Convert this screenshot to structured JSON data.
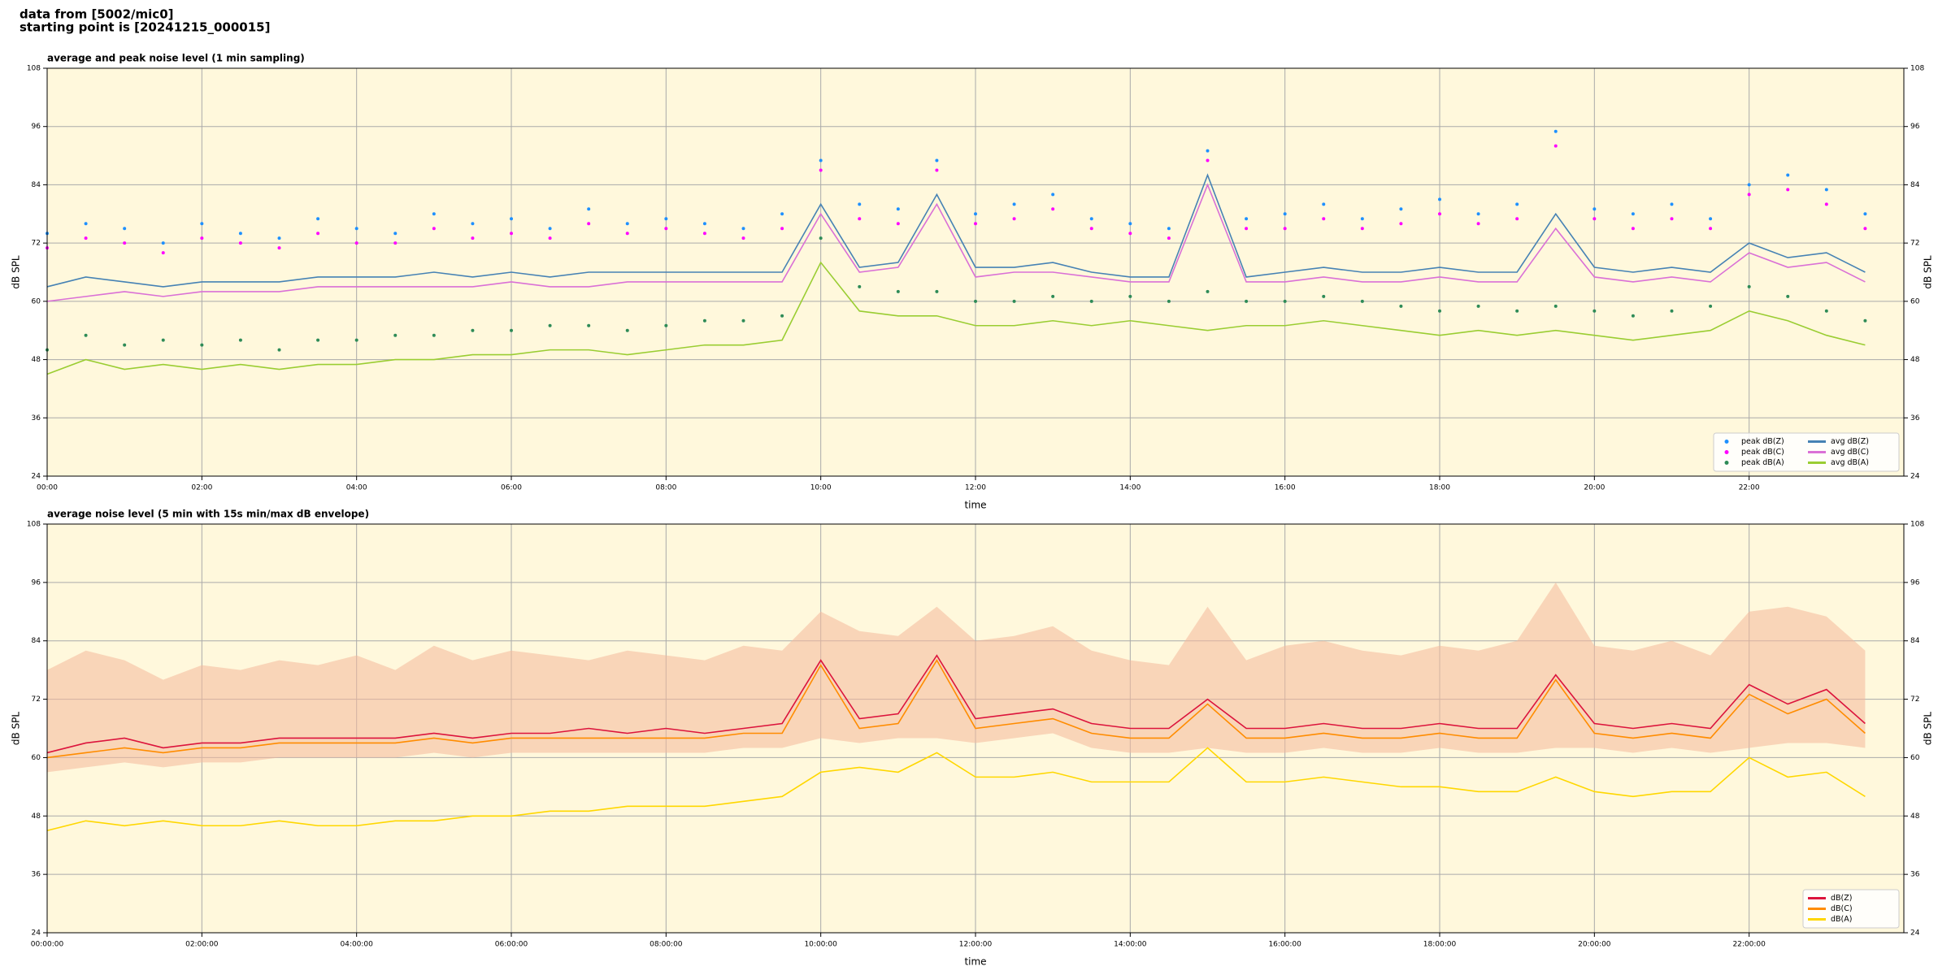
{
  "header": {
    "line1": "data from [5002/mic0]",
    "line2": "starting point is [20241215_000015]"
  },
  "chart_data": [
    {
      "type": "line",
      "title": "average and peak noise level (1 min sampling)",
      "xlabel": "time",
      "ylabel": "dB SPL",
      "xlim": [
        0,
        24
      ],
      "ylim": [
        24,
        108
      ],
      "grid": true,
      "background": "#fff8dc",
      "legend": "lower right",
      "xticks": [
        {
          "value": 0,
          "label": "00:00"
        },
        {
          "value": 2,
          "label": "02:00"
        },
        {
          "value": 4,
          "label": "04:00"
        },
        {
          "value": 6,
          "label": "06:00"
        },
        {
          "value": 8,
          "label": "08:00"
        },
        {
          "value": 10,
          "label": "10:00"
        },
        {
          "value": 12,
          "label": "12:00"
        },
        {
          "value": 14,
          "label": "14:00"
        },
        {
          "value": 16,
          "label": "16:00"
        },
        {
          "value": 18,
          "label": "18:00"
        },
        {
          "value": 20,
          "label": "20:00"
        },
        {
          "value": 22,
          "label": "22:00"
        }
      ],
      "yticks": [
        24,
        36,
        48,
        60,
        72,
        84,
        96,
        108
      ],
      "x": [
        0,
        0.5,
        1,
        1.5,
        2,
        2.5,
        3,
        3.5,
        4,
        4.5,
        5,
        5.5,
        6,
        6.5,
        7,
        7.5,
        8,
        8.5,
        9,
        9.5,
        10,
        10.5,
        11,
        11.5,
        12,
        12.5,
        13,
        13.5,
        14,
        14.5,
        15,
        15.5,
        16,
        16.5,
        17,
        17.5,
        18,
        18.5,
        19,
        19.5,
        20,
        20.5,
        21,
        21.5,
        22,
        22.5,
        23,
        23.5
      ],
      "series": [
        {
          "name": "peak dB(Z)",
          "type": "scatter",
          "color": "#1e90ff",
          "values": [
            74,
            76,
            75,
            72,
            76,
            74,
            73,
            77,
            75,
            74,
            78,
            76,
            77,
            75,
            79,
            76,
            77,
            76,
            75,
            78,
            89,
            80,
            79,
            89,
            78,
            80,
            82,
            77,
            76,
            75,
            91,
            77,
            78,
            80,
            77,
            79,
            81,
            78,
            80,
            95,
            79,
            78,
            80,
            77,
            84,
            86,
            83,
            78
          ]
        },
        {
          "name": "peak dB(C)",
          "type": "scatter",
          "color": "#ff00ff",
          "values": [
            71,
            73,
            72,
            70,
            73,
            72,
            71,
            74,
            72,
            72,
            75,
            73,
            74,
            73,
            76,
            74,
            75,
            74,
            73,
            75,
            87,
            77,
            76,
            87,
            76,
            77,
            79,
            75,
            74,
            73,
            89,
            75,
            75,
            77,
            75,
            76,
            78,
            76,
            77,
            92,
            77,
            75,
            77,
            75,
            82,
            83,
            80,
            75
          ]
        },
        {
          "name": "peak dB(A)",
          "type": "scatter",
          "color": "#2e8b57",
          "values": [
            50,
            53,
            51,
            52,
            51,
            52,
            50,
            52,
            52,
            53,
            53,
            54,
            54,
            55,
            55,
            54,
            55,
            56,
            56,
            57,
            73,
            63,
            62,
            62,
            60,
            60,
            61,
            60,
            61,
            60,
            62,
            60,
            60,
            61,
            60,
            59,
            58,
            59,
            58,
            59,
            58,
            57,
            58,
            59,
            63,
            61,
            58,
            56
          ]
        },
        {
          "name": "avg dB(Z)",
          "type": "line",
          "color": "#4682b4",
          "values": [
            63,
            65,
            64,
            63,
            64,
            64,
            64,
            65,
            65,
            65,
            66,
            65,
            66,
            65,
            66,
            66,
            66,
            66,
            66,
            66,
            80,
            67,
            68,
            82,
            67,
            67,
            68,
            66,
            65,
            65,
            86,
            65,
            66,
            67,
            66,
            66,
            67,
            66,
            66,
            78,
            67,
            66,
            67,
            66,
            72,
            69,
            70,
            66
          ]
        },
        {
          "name": "avg dB(C)",
          "type": "line",
          "color": "#da70d6",
          "values": [
            60,
            61,
            62,
            61,
            62,
            62,
            62,
            63,
            63,
            63,
            63,
            63,
            64,
            63,
            63,
            64,
            64,
            64,
            64,
            64,
            78,
            66,
            67,
            80,
            65,
            66,
            66,
            65,
            64,
            64,
            84,
            64,
            64,
            65,
            64,
            64,
            65,
            64,
            64,
            75,
            65,
            64,
            65,
            64,
            70,
            67,
            68,
            64
          ]
        },
        {
          "name": "avg dB(A)",
          "type": "line",
          "color": "#9acd32",
          "values": [
            45,
            48,
            46,
            47,
            46,
            47,
            46,
            47,
            47,
            48,
            48,
            49,
            49,
            50,
            50,
            49,
            50,
            51,
            51,
            52,
            68,
            58,
            57,
            57,
            55,
            55,
            56,
            55,
            56,
            55,
            54,
            55,
            55,
            56,
            55,
            54,
            53,
            54,
            53,
            54,
            53,
            52,
            53,
            54,
            58,
            56,
            53,
            51
          ]
        }
      ]
    },
    {
      "type": "line",
      "title": "average noise level (5 min with 15s min/max dB envelope)",
      "xlabel": "time",
      "ylabel": "dB SPL",
      "xlim": [
        0,
        24
      ],
      "ylim": [
        24,
        108
      ],
      "grid": true,
      "background": "#fff8dc",
      "legend": "lower right",
      "xticks": [
        {
          "value": 0,
          "label": "00:00:00"
        },
        {
          "value": 2,
          "label": "02:00:00"
        },
        {
          "value": 4,
          "label": "04:00:00"
        },
        {
          "value": 6,
          "label": "06:00:00"
        },
        {
          "value": 8,
          "label": "08:00:00"
        },
        {
          "value": 10,
          "label": "10:00:00"
        },
        {
          "value": 12,
          "label": "12:00:00"
        },
        {
          "value": 14,
          "label": "14:00:00"
        },
        {
          "value": 16,
          "label": "16:00:00"
        },
        {
          "value": 18,
          "label": "18:00:00"
        },
        {
          "value": 20,
          "label": "20:00:00"
        },
        {
          "value": 22,
          "label": "22:00:00"
        }
      ],
      "yticks": [
        24,
        36,
        48,
        60,
        72,
        84,
        96,
        108
      ],
      "x": [
        0,
        0.5,
        1,
        1.5,
        2,
        2.5,
        3,
        3.5,
        4,
        4.5,
        5,
        5.5,
        6,
        6.5,
        7,
        7.5,
        8,
        8.5,
        9,
        9.5,
        10,
        10.5,
        11,
        11.5,
        12,
        12.5,
        13,
        13.5,
        14,
        14.5,
        15,
        15.5,
        16,
        16.5,
        17,
        17.5,
        18,
        18.5,
        19,
        19.5,
        20,
        20.5,
        21,
        21.5,
        22,
        22.5,
        23,
        23.5
      ],
      "envelope": {
        "color": "#f4b89a",
        "lower": [
          57,
          58,
          59,
          58,
          59,
          59,
          60,
          60,
          60,
          60,
          61,
          60,
          61,
          61,
          61,
          61,
          61,
          61,
          62,
          62,
          64,
          63,
          64,
          64,
          63,
          64,
          65,
          62,
          61,
          61,
          62,
          61,
          61,
          62,
          61,
          61,
          62,
          61,
          61,
          62,
          62,
          61,
          62,
          61,
          62,
          63,
          63,
          62
        ],
        "upper": [
          78,
          82,
          80,
          76,
          79,
          78,
          80,
          79,
          81,
          78,
          83,
          80,
          82,
          81,
          80,
          82,
          81,
          80,
          83,
          82,
          90,
          86,
          85,
          91,
          84,
          85,
          87,
          82,
          80,
          79,
          91,
          80,
          83,
          84,
          82,
          81,
          83,
          82,
          84,
          96,
          83,
          82,
          84,
          81,
          90,
          91,
          89,
          82
        ]
      },
      "series": [
        {
          "name": "dB(Z)",
          "type": "line",
          "color": "#dc143c",
          "values": [
            61,
            63,
            64,
            62,
            63,
            63,
            64,
            64,
            64,
            64,
            65,
            64,
            65,
            65,
            66,
            65,
            66,
            65,
            66,
            67,
            80,
            68,
            69,
            81,
            68,
            69,
            70,
            67,
            66,
            66,
            72,
            66,
            66,
            67,
            66,
            66,
            67,
            66,
            66,
            77,
            67,
            66,
            67,
            66,
            75,
            71,
            74,
            67
          ]
        },
        {
          "name": "dB(C)",
          "type": "line",
          "color": "#ff8c00",
          "values": [
            60,
            61,
            62,
            61,
            62,
            62,
            63,
            63,
            63,
            63,
            64,
            63,
            64,
            64,
            64,
            64,
            64,
            64,
            65,
            65,
            79,
            66,
            67,
            80,
            66,
            67,
            68,
            65,
            64,
            64,
            71,
            64,
            64,
            65,
            64,
            64,
            65,
            64,
            64,
            76,
            65,
            64,
            65,
            64,
            73,
            69,
            72,
            65
          ]
        },
        {
          "name": "dB(A)",
          "type": "line",
          "color": "#ffd700",
          "values": [
            45,
            47,
            46,
            47,
            46,
            46,
            47,
            46,
            46,
            47,
            47,
            48,
            48,
            49,
            49,
            50,
            50,
            50,
            51,
            52,
            57,
            58,
            57,
            61,
            56,
            56,
            57,
            55,
            55,
            55,
            62,
            55,
            55,
            56,
            55,
            54,
            54,
            53,
            53,
            56,
            53,
            52,
            53,
            53,
            60,
            56,
            57,
            52
          ]
        }
      ]
    }
  ]
}
